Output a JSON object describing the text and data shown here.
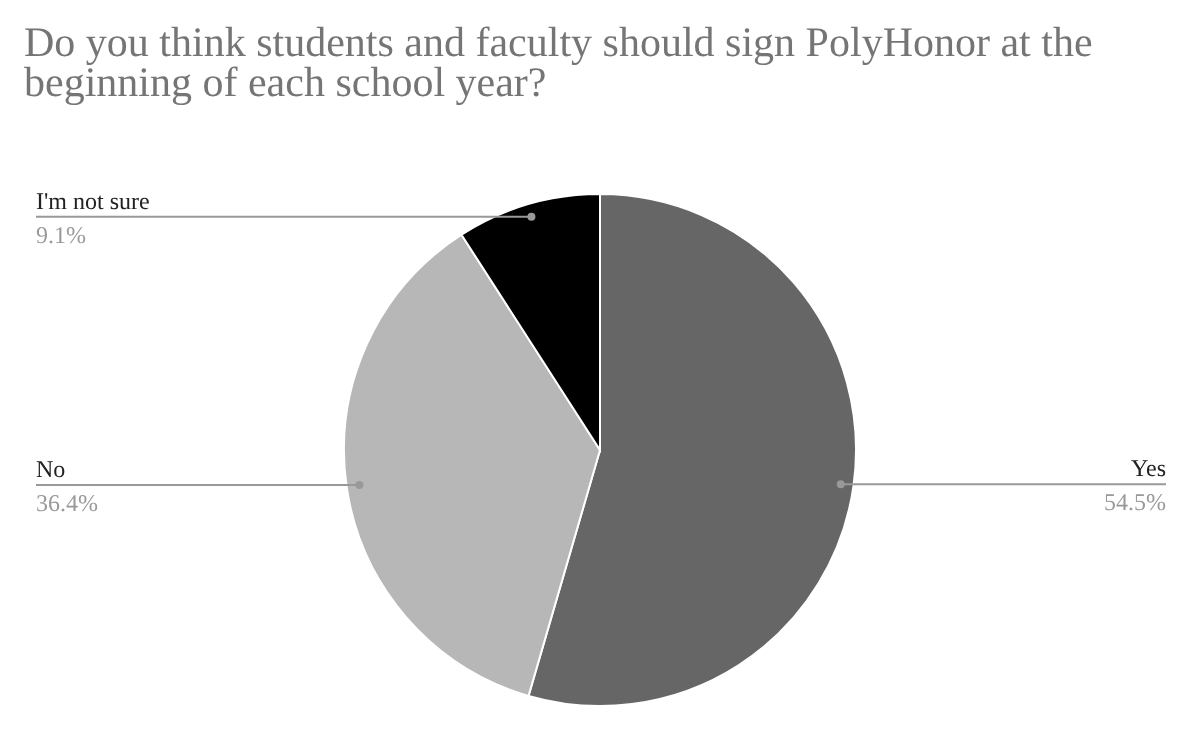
{
  "chart_data": {
    "type": "pie",
    "title": "Do you think students and faculty should sign PolyHonor at the beginning of each school year?",
    "categories": [
      "Yes",
      "No",
      "I'm not sure"
    ],
    "values": [
      54.5,
      36.4,
      9.1
    ],
    "colors": [
      "#666666",
      "#b7b7b7",
      "#000000"
    ],
    "value_labels": [
      "54.5%",
      "36.4%",
      "9.1%"
    ],
    "legend": false
  }
}
